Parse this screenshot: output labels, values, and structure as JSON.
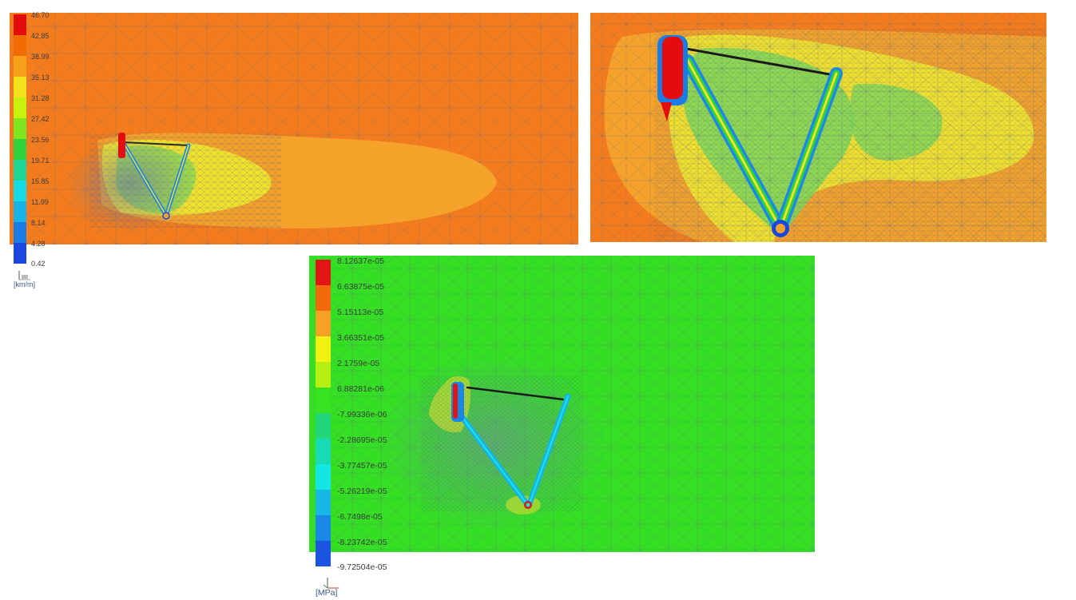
{
  "velocity_legend": {
    "labels": [
      "46.70",
      "42.85",
      "38.99",
      "35.13",
      "31.28",
      "27.42",
      "23.56",
      "19.71",
      "15.85",
      "11.99",
      "8.14",
      "4.28",
      "0.42"
    ],
    "colors": [
      "#e40d0d",
      "#f26c06",
      "#f5a218",
      "#f2e21a",
      "#c6f20e",
      "#7fe51c",
      "#2fd43c",
      "#1ed695",
      "#14dbe6",
      "#17b2e8",
      "#1a7ce6",
      "#1a47e0",
      "#1010d8"
    ],
    "unit": "[km/m]"
  },
  "pressure_legend": {
    "labels": [
      "8.12637e-05",
      "6.63875e-05",
      "5.15113e-05",
      "3.66351e-05",
      "2.1759e-05",
      "6.88281e-06",
      "-7.99336e-06",
      "-2.28695e-05",
      "-3.77457e-05",
      "-5.26219e-05",
      "-6.7498e-05",
      "-8.23742e-05",
      "-9.72504e-05"
    ],
    "colors": [
      "#e21414",
      "#f06a0c",
      "#f5a224",
      "#f4f010",
      "#b5f012",
      "#38e220",
      "#22d77a",
      "#18dab4",
      "#14e6e6",
      "#17b8e8",
      "#1a86e6",
      "#1a54e0",
      "#1010d8"
    ],
    "unit": "[MPa]"
  },
  "scene_colors": {
    "velocity_background": "#f47c1c",
    "velocity_wake_light": "#f5a22a",
    "velocity_wake_yellow": "#f2e22e",
    "velocity_green": "#7ed858",
    "pressure_background": "#34df24",
    "mesh_line": "#5a6a8a"
  }
}
